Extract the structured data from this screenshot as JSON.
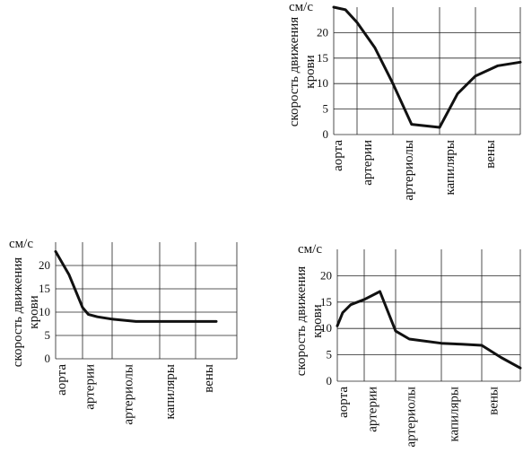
{
  "chart_data": [
    {
      "type": "line",
      "unit_label": "см/с",
      "ylabel_lines": [
        "скорость движения",
        "крови"
      ],
      "categories": [
        "аорта",
        "артерии",
        "артериолы",
        "капиляры",
        "вены"
      ],
      "y_ticks": [
        "0",
        "5",
        "10",
        "15",
        "20"
      ],
      "ylim": [
        0,
        25
      ],
      "x": [
        0,
        0.5,
        1,
        1.5,
        2,
        2.4,
        3,
        3.5,
        4,
        4.5,
        5
      ],
      "values": [
        25,
        24.5,
        22,
        17,
        10,
        2,
        1.4,
        8,
        11.5,
        13.5,
        14.2
      ]
    },
    {
      "type": "line",
      "unit_label": "см/с",
      "ylabel_lines": [
        "скорость движения",
        "крови"
      ],
      "categories": [
        "аорта",
        "артерии",
        "артериолы",
        "капиляры",
        "вены"
      ],
      "y_ticks": [
        "0",
        "5",
        "10",
        "15",
        "20"
      ],
      "ylim": [
        0,
        25
      ],
      "x": [
        0,
        0.5,
        1,
        1.2,
        1.5,
        2,
        2.5,
        3,
        3.5,
        4,
        4.5
      ],
      "values": [
        23,
        18,
        11,
        9.5,
        9,
        8.5,
        8,
        8,
        8,
        8,
        8
      ]
    },
    {
      "type": "line",
      "unit_label": "см/с",
      "ylabel_lines": [
        "скорость движения",
        "крови"
      ],
      "categories": [
        "аорта",
        "артерии",
        "артериолы",
        "капиляры",
        "вены"
      ],
      "y_ticks": [
        "0",
        "5",
        "10",
        "15",
        "20"
      ],
      "ylim": [
        0,
        25
      ],
      "x": [
        0,
        0.2,
        0.5,
        1,
        1.5,
        2,
        2.3,
        3,
        3.5,
        4,
        4.5,
        5
      ],
      "values": [
        10.5,
        13,
        14.5,
        15.5,
        17,
        9.5,
        8,
        7.2,
        7,
        6.8,
        4.5,
        2.5
      ]
    }
  ]
}
